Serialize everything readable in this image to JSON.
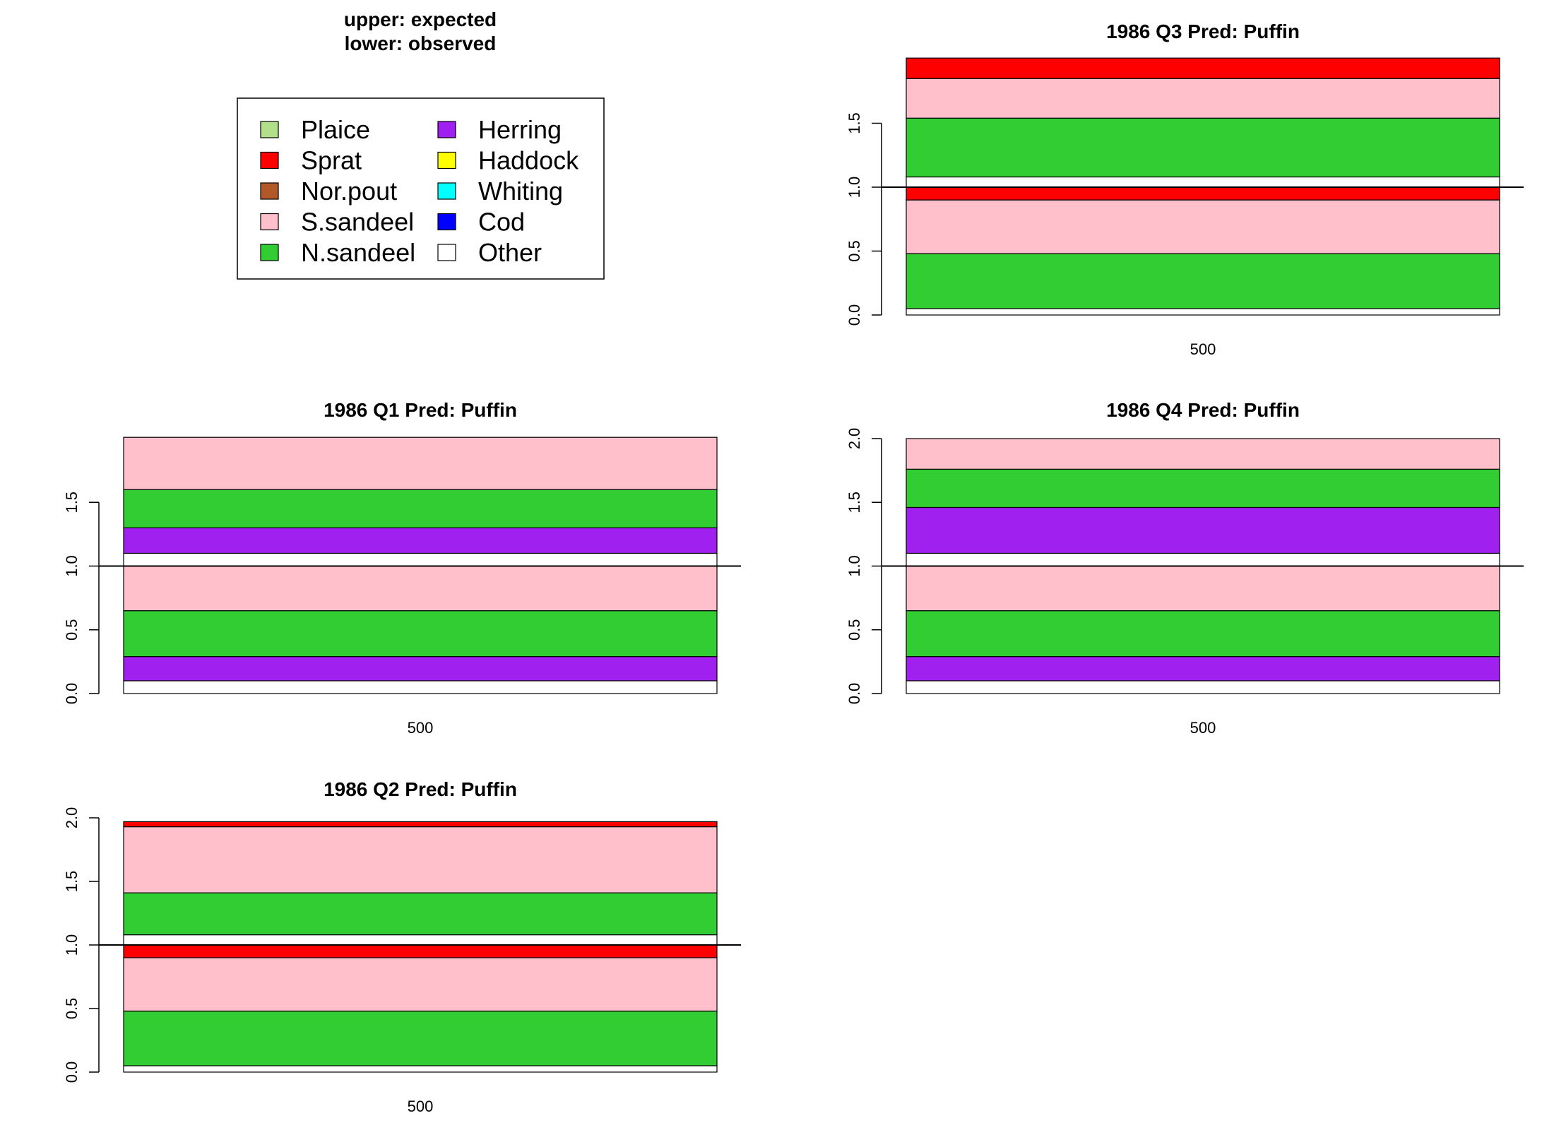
{
  "header": {
    "line1": "upper: expected",
    "line2": "lower: observed"
  },
  "legend": {
    "items": [
      {
        "label": "Plaice",
        "color": "#b2df8a"
      },
      {
        "label": "Sprat",
        "color": "#ff0000"
      },
      {
        "label": "Nor.pout",
        "color": "#b15928"
      },
      {
        "label": "S.sandeel",
        "color": "#ffc0cb"
      },
      {
        "label": "N.sandeel",
        "color": "#32cd32"
      },
      {
        "label": "Herring",
        "color": "#a020f0"
      },
      {
        "label": "Haddock",
        "color": "#ffff00"
      },
      {
        "label": "Whiting",
        "color": "#00ffff"
      },
      {
        "label": "Cod",
        "color": "#0000ff"
      },
      {
        "label": "Other",
        "color": "#ffffff"
      }
    ]
  },
  "chart_data": [
    {
      "type": "bar",
      "title": "1986 Q3  Pred: Puffin",
      "categories": [
        "500"
      ],
      "yticks": [
        0.0,
        0.5,
        1.0,
        1.5
      ],
      "ylim": [
        0,
        2.0
      ],
      "reference_line": 1.0,
      "observed": [
        {
          "name": "Other",
          "value": 0.05
        },
        {
          "name": "N.sandeel",
          "value": 0.43
        },
        {
          "name": "S.sandeel",
          "value": 0.42
        },
        {
          "name": "Sprat",
          "value": 0.1
        }
      ],
      "expected": [
        {
          "name": "Other",
          "value": 0.08
        },
        {
          "name": "N.sandeel",
          "value": 0.46
        },
        {
          "name": "S.sandeel",
          "value": 0.31
        },
        {
          "name": "Sprat",
          "value": 0.16
        }
      ]
    },
    {
      "type": "bar",
      "title": "1986 Q1  Pred: Puffin",
      "categories": [
        "500"
      ],
      "yticks": [
        0.0,
        0.5,
        1.0,
        1.5
      ],
      "ylim": [
        0,
        2.0
      ],
      "reference_line": 1.0,
      "observed": [
        {
          "name": "Other",
          "value": 0.1
        },
        {
          "name": "Herring",
          "value": 0.19
        },
        {
          "name": "N.sandeel",
          "value": 0.36
        },
        {
          "name": "S.sandeel",
          "value": 0.36
        }
      ],
      "expected": [
        {
          "name": "Other",
          "value": 0.1
        },
        {
          "name": "Herring",
          "value": 0.2
        },
        {
          "name": "N.sandeel",
          "value": 0.3
        },
        {
          "name": "S.sandeel",
          "value": 0.41
        }
      ]
    },
    {
      "type": "bar",
      "title": "1986 Q4  Pred: Puffin",
      "categories": [
        "500"
      ],
      "yticks": [
        0.0,
        0.5,
        1.0,
        1.5,
        2.0
      ],
      "ylim": [
        0,
        2.0
      ],
      "reference_line": 1.0,
      "observed": [
        {
          "name": "Other",
          "value": 0.1
        },
        {
          "name": "Herring",
          "value": 0.19
        },
        {
          "name": "N.sandeel",
          "value": 0.36
        },
        {
          "name": "S.sandeel",
          "value": 0.36
        }
      ],
      "expected": [
        {
          "name": "Other",
          "value": 0.1
        },
        {
          "name": "Herring",
          "value": 0.36
        },
        {
          "name": "N.sandeel",
          "value": 0.3
        },
        {
          "name": "S.sandeel",
          "value": 0.24
        }
      ]
    },
    {
      "type": "bar",
      "title": "1986 Q2  Pred: Puffin",
      "categories": [
        "500"
      ],
      "yticks": [
        0.0,
        0.5,
        1.0,
        1.5,
        2.0
      ],
      "ylim": [
        0,
        2.0
      ],
      "reference_line": 1.0,
      "observed": [
        {
          "name": "Other",
          "value": 0.05
        },
        {
          "name": "N.sandeel",
          "value": 0.43
        },
        {
          "name": "S.sandeel",
          "value": 0.42
        },
        {
          "name": "Sprat",
          "value": 0.1
        }
      ],
      "expected": [
        {
          "name": "Other",
          "value": 0.08
        },
        {
          "name": "N.sandeel",
          "value": 0.33
        },
        {
          "name": "S.sandeel",
          "value": 0.52
        },
        {
          "name": "Sprat",
          "value": 0.04
        }
      ]
    }
  ]
}
